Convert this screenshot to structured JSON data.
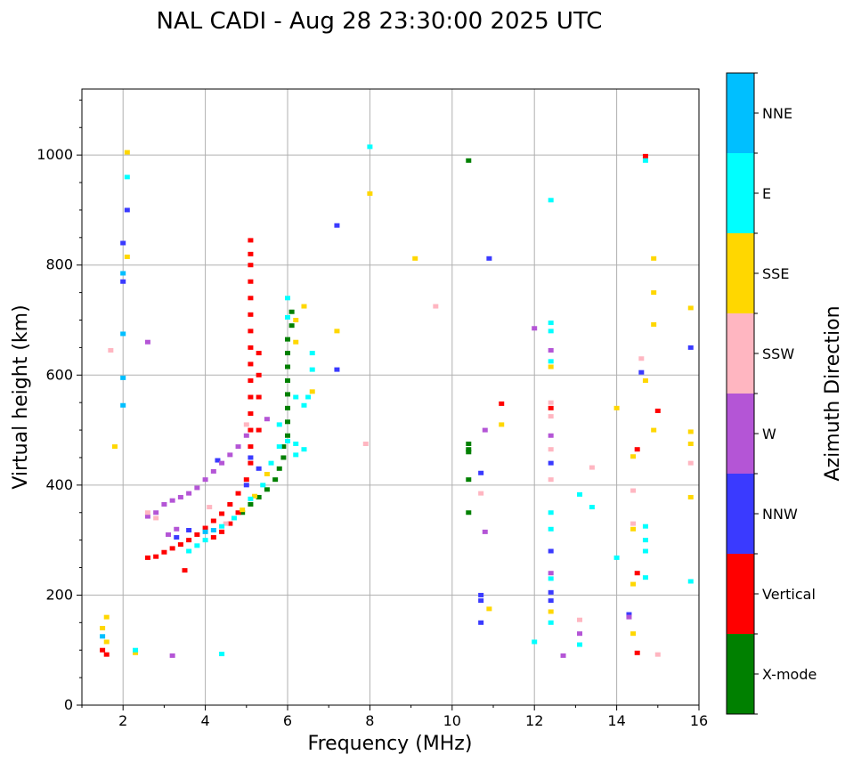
{
  "chart_data": {
    "type": "scatter",
    "title": "NAL CADI - Aug 28 23:30:00 2025 UTC",
    "xlabel": "Frequency (MHz)",
    "ylabel": "Virtual height (km)",
    "xlim": [
      1,
      16
    ],
    "ylim": [
      0,
      1120
    ],
    "xticks": [
      2,
      4,
      6,
      8,
      10,
      12,
      14,
      16
    ],
    "yticks": [
      0,
      200,
      400,
      600,
      800,
      1000
    ],
    "grid": true,
    "colorbar": {
      "label": "Azimuth Direction",
      "categories": [
        "X-mode",
        "Vertical",
        "NNW",
        "W",
        "SSW",
        "SSE",
        "E",
        "NNE"
      ],
      "colors": [
        "#008000",
        "#ff0000",
        "#3a3aff",
        "#b455d6",
        "#ffb6c1",
        "#ffd700",
        "#00ffff",
        "#00bfff"
      ]
    },
    "series": [
      {
        "name": "X-mode",
        "points": [
          [
            4.9,
            350
          ],
          [
            5.1,
            365
          ],
          [
            5.3,
            378
          ],
          [
            5.5,
            392
          ],
          [
            5.7,
            410
          ],
          [
            5.8,
            430
          ],
          [
            5.9,
            450
          ],
          [
            5.9,
            470
          ],
          [
            6.0,
            490
          ],
          [
            6.0,
            515
          ],
          [
            6.0,
            540
          ],
          [
            6.0,
            565
          ],
          [
            6.0,
            590
          ],
          [
            6.0,
            615
          ],
          [
            6.0,
            640
          ],
          [
            6.0,
            665
          ],
          [
            6.1,
            690
          ],
          [
            6.1,
            715
          ],
          [
            10.4,
            990
          ],
          [
            10.4,
            475
          ],
          [
            10.4,
            465
          ],
          [
            10.4,
            410
          ],
          [
            10.4,
            350
          ],
          [
            10.4,
            460
          ]
        ]
      },
      {
        "name": "Vertical",
        "points": [
          [
            2.6,
            268
          ],
          [
            2.8,
            270
          ],
          [
            3.0,
            278
          ],
          [
            3.2,
            285
          ],
          [
            3.4,
            292
          ],
          [
            3.6,
            300
          ],
          [
            3.8,
            310
          ],
          [
            4.0,
            322
          ],
          [
            4.2,
            335
          ],
          [
            4.4,
            348
          ],
          [
            4.6,
            365
          ],
          [
            4.8,
            385
          ],
          [
            5.0,
            410
          ],
          [
            5.1,
            440
          ],
          [
            5.1,
            470
          ],
          [
            5.1,
            500
          ],
          [
            5.1,
            530
          ],
          [
            5.1,
            560
          ],
          [
            5.1,
            590
          ],
          [
            5.1,
            620
          ],
          [
            5.1,
            650
          ],
          [
            5.1,
            680
          ],
          [
            5.1,
            710
          ],
          [
            5.1,
            740
          ],
          [
            5.1,
            770
          ],
          [
            5.1,
            800
          ],
          [
            5.1,
            820
          ],
          [
            5.1,
            845
          ],
          [
            5.3,
            500
          ],
          [
            5.3,
            560
          ],
          [
            5.3,
            600
          ],
          [
            5.3,
            640
          ],
          [
            4.2,
            305
          ],
          [
            4.4,
            315
          ],
          [
            4.6,
            330
          ],
          [
            4.8,
            350
          ],
          [
            1.6,
            92
          ],
          [
            1.5,
            100
          ],
          [
            3.5,
            245
          ],
          [
            11.2,
            548
          ],
          [
            12.4,
            540
          ],
          [
            14.5,
            95
          ],
          [
            14.5,
            240
          ],
          [
            14.5,
            465
          ],
          [
            14.7,
            998
          ],
          [
            15.0,
            535
          ]
        ]
      },
      {
        "name": "NNW",
        "points": [
          [
            3.3,
            305
          ],
          [
            3.6,
            318
          ],
          [
            4.3,
            445
          ],
          [
            5.1,
            450
          ],
          [
            5.3,
            430
          ],
          [
            5.0,
            400
          ],
          [
            2.0,
            840
          ],
          [
            2.0,
            770
          ],
          [
            2.1,
            900
          ],
          [
            7.2,
            610
          ],
          [
            7.2,
            872
          ],
          [
            10.7,
            422
          ],
          [
            10.7,
            200
          ],
          [
            10.7,
            190
          ],
          [
            10.7,
            150
          ],
          [
            10.9,
            812
          ],
          [
            12.4,
            440
          ],
          [
            12.4,
            280
          ],
          [
            12.4,
            205
          ],
          [
            12.4,
            190
          ],
          [
            14.6,
            605
          ],
          [
            14.3,
            165
          ],
          [
            15.8,
            650
          ]
        ]
      },
      {
        "name": "W",
        "points": [
          [
            2.6,
            343
          ],
          [
            2.8,
            350
          ],
          [
            3.0,
            365
          ],
          [
            3.2,
            372
          ],
          [
            3.4,
            378
          ],
          [
            3.6,
            385
          ],
          [
            3.8,
            395
          ],
          [
            4.0,
            410
          ],
          [
            4.2,
            425
          ],
          [
            4.4,
            440
          ],
          [
            4.6,
            455
          ],
          [
            4.8,
            470
          ],
          [
            5.0,
            490
          ],
          [
            3.1,
            310
          ],
          [
            3.3,
            320
          ],
          [
            5.5,
            520
          ],
          [
            2.6,
            660
          ],
          [
            3.2,
            90
          ],
          [
            10.8,
            315
          ],
          [
            10.8,
            500
          ],
          [
            12.4,
            645
          ],
          [
            12.4,
            490
          ],
          [
            12.4,
            240
          ],
          [
            12.7,
            90
          ],
          [
            13.1,
            130
          ],
          [
            14.3,
            160
          ],
          [
            12.0,
            685
          ]
        ]
      },
      {
        "name": "SSW",
        "points": [
          [
            2.6,
            350
          ],
          [
            2.8,
            340
          ],
          [
            4.1,
            360
          ],
          [
            4.5,
            330
          ],
          [
            5.0,
            510
          ],
          [
            1.7,
            645
          ],
          [
            7.9,
            475
          ],
          [
            9.6,
            725
          ],
          [
            10.7,
            385
          ],
          [
            12.4,
            550
          ],
          [
            12.4,
            525
          ],
          [
            12.4,
            465
          ],
          [
            12.4,
            410
          ],
          [
            13.1,
            155
          ],
          [
            13.4,
            432
          ],
          [
            14.4,
            390
          ],
          [
            14.4,
            330
          ],
          [
            14.6,
            630
          ],
          [
            15.0,
            92
          ],
          [
            15.8,
            440
          ]
        ]
      },
      {
        "name": "SSE",
        "points": [
          [
            1.6,
            160
          ],
          [
            1.5,
            140
          ],
          [
            1.6,
            115
          ],
          [
            2.1,
            1005
          ],
          [
            2.1,
            815
          ],
          [
            1.8,
            470
          ],
          [
            2.3,
            95
          ],
          [
            4.9,
            355
          ],
          [
            5.2,
            380
          ],
          [
            5.5,
            420
          ],
          [
            6.2,
            700
          ],
          [
            6.2,
            660
          ],
          [
            6.4,
            725
          ],
          [
            6.6,
            570
          ],
          [
            7.2,
            680
          ],
          [
            8.0,
            930
          ],
          [
            9.1,
            812
          ],
          [
            10.9,
            175
          ],
          [
            11.2,
            510
          ],
          [
            12.4,
            170
          ],
          [
            12.4,
            615
          ],
          [
            14.0,
            540
          ],
          [
            14.4,
            452
          ],
          [
            14.4,
            320
          ],
          [
            14.4,
            220
          ],
          [
            14.4,
            130
          ],
          [
            14.7,
            590
          ],
          [
            14.9,
            812
          ],
          [
            14.9,
            750
          ],
          [
            14.9,
            692
          ],
          [
            14.9,
            500
          ],
          [
            15.8,
            722
          ],
          [
            15.8,
            497
          ],
          [
            15.8,
            475
          ],
          [
            15.8,
            378
          ]
        ]
      },
      {
        "name": "E",
        "points": [
          [
            3.6,
            280
          ],
          [
            3.8,
            290
          ],
          [
            4.0,
            300
          ],
          [
            4.4,
            325
          ],
          [
            4.7,
            340
          ],
          [
            5.1,
            375
          ],
          [
            5.4,
            400
          ],
          [
            5.6,
            440
          ],
          [
            5.8,
            470
          ],
          [
            5.8,
            510
          ],
          [
            6.0,
            480
          ],
          [
            6.2,
            475
          ],
          [
            6.2,
            455
          ],
          [
            6.4,
            465
          ],
          [
            6.4,
            545
          ],
          [
            6.5,
            560
          ],
          [
            6.6,
            610
          ],
          [
            6.6,
            640
          ],
          [
            6.0,
            705
          ],
          [
            6.0,
            740
          ],
          [
            6.2,
            560
          ],
          [
            4.4,
            93
          ],
          [
            2.3,
            100
          ],
          [
            2.1,
            960
          ],
          [
            8.0,
            1015
          ],
          [
            12.0,
            115
          ],
          [
            12.4,
            695
          ],
          [
            12.4,
            680
          ],
          [
            12.4,
            625
          ],
          [
            12.4,
            350
          ],
          [
            12.4,
            320
          ],
          [
            12.4,
            230
          ],
          [
            12.4,
            150
          ],
          [
            12.4,
            918
          ],
          [
            13.1,
            110
          ],
          [
            13.1,
            383
          ],
          [
            13.4,
            360
          ],
          [
            14.0,
            268
          ],
          [
            14.7,
            990
          ],
          [
            14.7,
            325
          ],
          [
            14.7,
            300
          ],
          [
            14.7,
            280
          ],
          [
            14.7,
            232
          ],
          [
            15.8,
            225
          ]
        ]
      },
      {
        "name": "NNE",
        "points": [
          [
            2.0,
            595
          ],
          [
            2.0,
            545
          ],
          [
            2.0,
            675
          ],
          [
            2.0,
            785
          ],
          [
            4.0,
            315
          ],
          [
            4.2,
            318
          ],
          [
            1.5,
            125
          ]
        ]
      }
    ]
  }
}
